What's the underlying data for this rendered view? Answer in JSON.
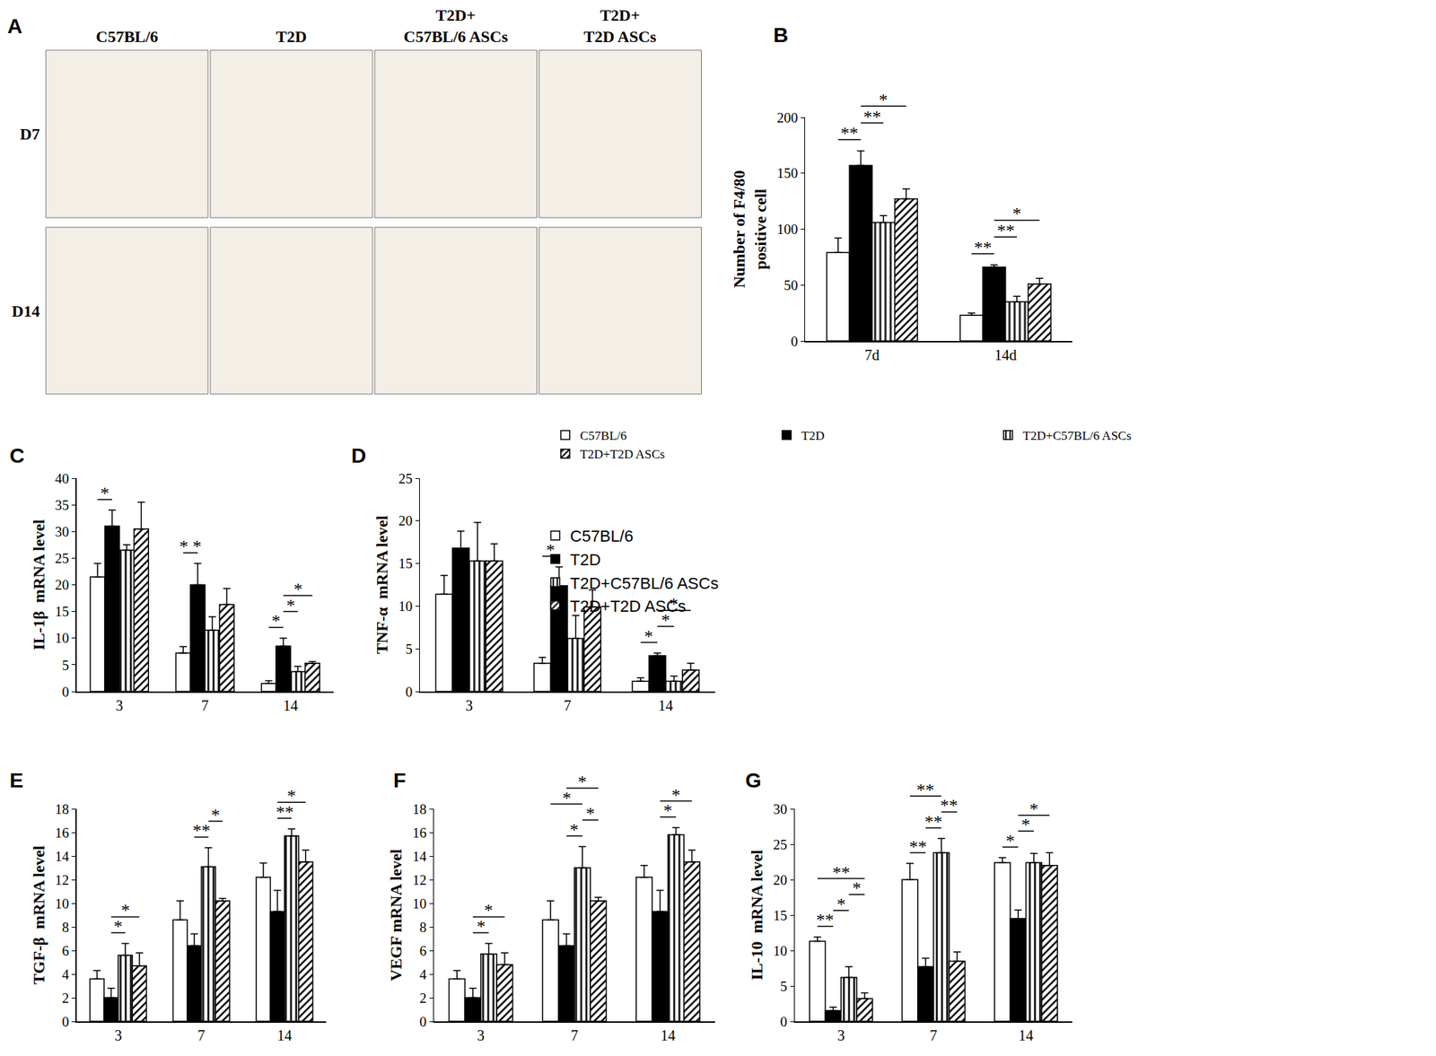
{
  "image_panel": {
    "panel": "A",
    "columns": [
      "C57BL/6",
      "T2D",
      "T2D+\nC57BL/6 ASCs",
      "T2D+\nT2D ASCs"
    ],
    "rows": [
      "D7",
      "D14"
    ]
  },
  "chart_data": [
    {
      "type": "bar",
      "panel": "B",
      "categories": [
        "7d",
        "14d"
      ],
      "ylabel": "Number of F4/80\npositive cell",
      "ylim": [
        0,
        200
      ],
      "yticks": [
        0,
        50,
        100,
        150,
        200
      ],
      "legend": "bottom",
      "series": [
        {
          "name": "C57BL/6",
          "color": "#ffffff",
          "marker": "solid",
          "values": [
            79,
            23
          ],
          "errors": [
            13,
            2
          ]
        },
        {
          "name": "T2D",
          "color": "#000000",
          "marker": "solid",
          "values": [
            157,
            66
          ],
          "errors": [
            13,
            2
          ]
        },
        {
          "name": "T2D+C57BL/6 ASCs",
          "color": "#ffffff",
          "marker": "vertical_stripes",
          "values": [
            106,
            35
          ],
          "errors": [
            6,
            5
          ]
        },
        {
          "name": "T2D+T2D ASCs",
          "color": "#ffffff",
          "marker": "diagonal_stripes",
          "values": [
            127,
            51
          ],
          "errors": [
            9,
            5
          ]
        }
      ],
      "significance": [
        {
          "category": 0,
          "series": [
            0,
            1
          ],
          "label": "**"
        },
        {
          "category": 0,
          "series": [
            1,
            2
          ],
          "label": "**"
        },
        {
          "category": 0,
          "series": [
            1,
            3
          ],
          "label": "*"
        },
        {
          "category": 1,
          "series": [
            0,
            1
          ],
          "label": "**"
        },
        {
          "category": 1,
          "series": [
            1,
            2
          ],
          "label": "**"
        },
        {
          "category": 1,
          "series": [
            1,
            3
          ],
          "label": "*"
        }
      ]
    },
    {
      "type": "bar",
      "panel": "C",
      "categories": [
        "3",
        "7",
        "14"
      ],
      "ylabel": "IL-1β  mRNA level",
      "ylim": [
        0,
        40
      ],
      "yticks": [
        0,
        5,
        10,
        15,
        20,
        25,
        30,
        35,
        40
      ],
      "legend": "right",
      "series": [
        {
          "name": "C57BL/6",
          "color": "#ffffff",
          "marker": "solid",
          "values": [
            21.5,
            7.2,
            1.5
          ],
          "errors": [
            2.5,
            1.2,
            0.5
          ]
        },
        {
          "name": "T2D",
          "color": "#000000",
          "marker": "solid",
          "values": [
            31,
            20,
            8.5
          ],
          "errors": [
            3,
            4,
            1.5
          ]
        },
        {
          "name": "T2D+C57BL/6 ASCs",
          "color": "#ffffff",
          "marker": "vertical_stripes",
          "values": [
            26.5,
            11.5,
            3.7
          ],
          "errors": [
            1,
            2.5,
            1
          ]
        },
        {
          "name": "T2D+T2D ASCs",
          "color": "#ffffff",
          "marker": "diagonal_stripes",
          "values": [
            30.5,
            16.3,
            5.3
          ],
          "errors": [
            5,
            3,
            0.3
          ]
        }
      ],
      "significance": [
        {
          "category": 0,
          "series": [
            0,
            1
          ],
          "label": "*"
        },
        {
          "category": 1,
          "series": [
            0,
            1
          ],
          "label": "* *"
        },
        {
          "category": 2,
          "series": [
            0,
            1
          ],
          "label": "*"
        },
        {
          "category": 2,
          "series": [
            1,
            2
          ],
          "label": "*"
        },
        {
          "category": 2,
          "series": [
            1,
            3
          ],
          "label": "*"
        }
      ]
    },
    {
      "type": "bar",
      "panel": "D",
      "categories": [
        "3",
        "7",
        "14"
      ],
      "ylabel": "TNF-α  mRNA level",
      "ylim": [
        0,
        25
      ],
      "yticks": [
        0,
        5,
        10,
        15,
        20,
        25
      ],
      "series": [
        {
          "name": "C57BL/6",
          "color": "#ffffff",
          "marker": "solid",
          "values": [
            11.4,
            3.3,
            1.2
          ],
          "errors": [
            2.2,
            0.7,
            0.4
          ]
        },
        {
          "name": "T2D",
          "color": "#000000",
          "marker": "solid",
          "values": [
            16.8,
            12.4,
            4.2
          ],
          "errors": [
            2,
            2.2,
            0.3
          ]
        },
        {
          "name": "T2D+C57BL/6 ASCs",
          "color": "#ffffff",
          "marker": "vertical_stripes",
          "values": [
            15.3,
            6.2,
            1.2
          ],
          "errors": [
            4.5,
            2.7,
            0.6
          ]
        },
        {
          "name": "T2D+T2D ASCs",
          "color": "#ffffff",
          "marker": "diagonal_stripes",
          "values": [
            15.3,
            9.9,
            2.5
          ],
          "errors": [
            2,
            2,
            0.8
          ]
        }
      ],
      "significance": [
        {
          "category": 1,
          "series": [
            0,
            1
          ],
          "label": "*"
        },
        {
          "category": 2,
          "series": [
            0,
            1
          ],
          "label": "*"
        },
        {
          "category": 2,
          "series": [
            1,
            2
          ],
          "label": "*"
        },
        {
          "category": 2,
          "series": [
            1,
            3
          ],
          "label": "*"
        }
      ]
    },
    {
      "type": "bar",
      "panel": "E",
      "categories": [
        "3",
        "7",
        "14"
      ],
      "ylabel": "TGF-β  mRNA level",
      "ylim": [
        0,
        18
      ],
      "yticks": [
        0,
        2,
        4,
        6,
        8,
        10,
        12,
        14,
        16,
        18
      ],
      "series": [
        {
          "name": "C57BL/6",
          "color": "#ffffff",
          "marker": "solid",
          "values": [
            3.6,
            8.6,
            12.2
          ],
          "errors": [
            0.7,
            1.6,
            1.2
          ]
        },
        {
          "name": "T2D",
          "color": "#000000",
          "marker": "solid",
          "values": [
            2,
            6.4,
            9.3
          ],
          "errors": [
            0.8,
            1,
            1.8
          ]
        },
        {
          "name": "T2D+C57BL/6 ASCs",
          "color": "#ffffff",
          "marker": "vertical_stripes",
          "values": [
            5.6,
            13.1,
            15.7
          ],
          "errors": [
            1,
            1.6,
            0.6
          ]
        },
        {
          "name": "T2D+T2D ASCs",
          "color": "#ffffff",
          "marker": "diagonal_stripes",
          "values": [
            4.7,
            10.2,
            13.5
          ],
          "errors": [
            1.1,
            0.2,
            1
          ]
        }
      ],
      "significance": [
        {
          "category": 0,
          "series": [
            1,
            2
          ],
          "label": "*"
        },
        {
          "category": 0,
          "series": [
            1,
            3
          ],
          "label": "*"
        },
        {
          "category": 1,
          "series": [
            1,
            2
          ],
          "label": "**"
        },
        {
          "category": 1,
          "series": [
            2,
            3
          ],
          "label": "*"
        },
        {
          "category": 2,
          "series": [
            1,
            2
          ],
          "label": "**"
        },
        {
          "category": 2,
          "series": [
            1,
            3
          ],
          "label": "*"
        }
      ]
    },
    {
      "type": "bar",
      "panel": "F",
      "categories": [
        "3",
        "7",
        "14"
      ],
      "ylabel": "VEGF mRNA level",
      "ylim": [
        0,
        18
      ],
      "yticks": [
        0,
        2,
        4,
        6,
        8,
        10,
        12,
        14,
        16,
        18
      ],
      "series": [
        {
          "name": "C57BL/6",
          "color": "#ffffff",
          "marker": "solid",
          "values": [
            3.6,
            8.6,
            12.2
          ],
          "errors": [
            0.7,
            1.6,
            1
          ]
        },
        {
          "name": "T2D",
          "color": "#000000",
          "marker": "solid",
          "values": [
            2,
            6.4,
            9.3
          ],
          "errors": [
            0.8,
            1,
            1.8
          ]
        },
        {
          "name": "T2D+C57BL/6 ASCs",
          "color": "#ffffff",
          "marker": "vertical_stripes",
          "values": [
            5.7,
            13,
            15.8
          ],
          "errors": [
            0.9,
            1.8,
            0.6
          ]
        },
        {
          "name": "T2D+T2D ASCs",
          "color": "#ffffff",
          "marker": "diagonal_stripes",
          "values": [
            4.8,
            10.2,
            13.5
          ],
          "errors": [
            1,
            0.3,
            1
          ]
        }
      ],
      "significance": [
        {
          "category": 0,
          "series": [
            1,
            2
          ],
          "label": "*"
        },
        {
          "category": 0,
          "series": [
            1,
            3
          ],
          "label": "*"
        },
        {
          "category": 1,
          "series": [
            1,
            2
          ],
          "label": "*"
        },
        {
          "category": 1,
          "series": [
            2,
            3
          ],
          "label": "*"
        },
        {
          "category": 1,
          "series": [
            0,
            2
          ],
          "label": "*"
        },
        {
          "category": 1,
          "series": [
            1,
            3
          ],
          "label": "*"
        },
        {
          "category": 2,
          "series": [
            1,
            2
          ],
          "label": "*"
        },
        {
          "category": 2,
          "series": [
            1,
            3
          ],
          "label": "*"
        }
      ]
    },
    {
      "type": "bar",
      "panel": "G",
      "categories": [
        "3",
        "7",
        "14"
      ],
      "ylabel": "IL-10  mRNA level",
      "ylim": [
        0,
        30
      ],
      "yticks": [
        0,
        5,
        10,
        15,
        20,
        25,
        30
      ],
      "series": [
        {
          "name": "C57BL/6",
          "color": "#ffffff",
          "marker": "solid",
          "values": [
            11.3,
            20,
            22.4
          ],
          "errors": [
            0.6,
            2.3,
            0.7
          ]
        },
        {
          "name": "T2D",
          "color": "#000000",
          "marker": "solid",
          "values": [
            1.5,
            7.7,
            14.5
          ],
          "errors": [
            0.5,
            1.2,
            1.2
          ]
        },
        {
          "name": "T2D+C57BL/6 ASCs",
          "color": "#ffffff",
          "marker": "vertical_stripes",
          "values": [
            6.2,
            23.8,
            22.4
          ],
          "errors": [
            1.5,
            2,
            1.3
          ]
        },
        {
          "name": "T2D+T2D ASCs",
          "color": "#ffffff",
          "marker": "diagonal_stripes",
          "values": [
            3.2,
            8.5,
            22
          ],
          "errors": [
            0.8,
            1.3,
            1.8
          ]
        }
      ],
      "significance": [
        {
          "category": 0,
          "series": [
            0,
            1
          ],
          "label": "**"
        },
        {
          "category": 0,
          "series": [
            1,
            2
          ],
          "label": "*"
        },
        {
          "category": 0,
          "series": [
            2,
            3
          ],
          "label": "*"
        },
        {
          "category": 0,
          "series": [
            0,
            3
          ],
          "label": "**"
        },
        {
          "category": 1,
          "series": [
            0,
            1
          ],
          "label": "**"
        },
        {
          "category": 1,
          "series": [
            1,
            2
          ],
          "label": "**"
        },
        {
          "category": 1,
          "series": [
            2,
            3
          ],
          "label": "**"
        },
        {
          "category": 1,
          "series": [
            0,
            2
          ],
          "label": "**"
        },
        {
          "category": 2,
          "series": [
            0,
            1
          ],
          "label": "*"
        },
        {
          "category": 2,
          "series": [
            1,
            2
          ],
          "label": "*"
        },
        {
          "category": 2,
          "series": [
            1,
            3
          ],
          "label": "*"
        }
      ]
    }
  ]
}
